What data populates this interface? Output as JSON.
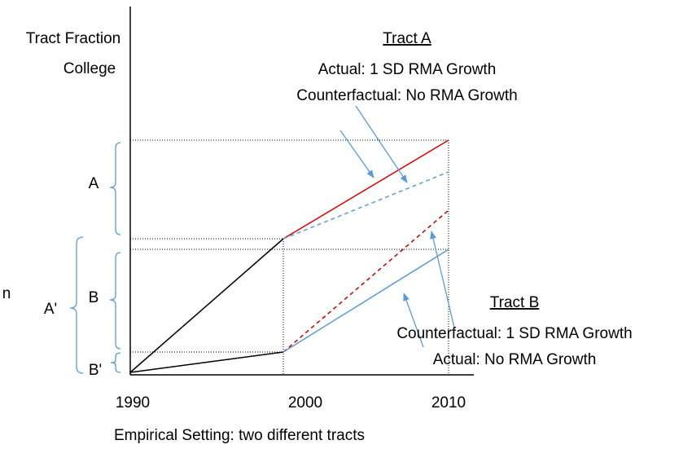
{
  "y_axis_label": {
    "line1": "Tract Fraction",
    "line2": "College"
  },
  "x_axis": {
    "labels": [
      "1990",
      "2000",
      "2010"
    ],
    "caption": "Empirical Setting: two different tracts"
  },
  "tract_a": {
    "title": "Tract A",
    "actual": "Actual: 1 SD RMA Growth",
    "counterfactual": "Counterfactual: No RMA Growth"
  },
  "tract_b": {
    "title": "Tract B",
    "counterfactual": "Counterfactual: 1 SD RMA Growth",
    "actual": "Actual: No RMA Growth"
  },
  "braces": {
    "a": "A",
    "b": "B",
    "a_prime": "A'",
    "b_prime": "B'"
  },
  "cut_text": "n"
}
